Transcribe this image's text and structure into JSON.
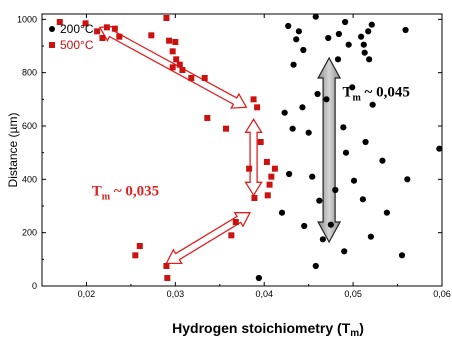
{
  "chart_data": {
    "type": "scatter",
    "xlabel": "Hydrogen stoichiometry (T",
    "xlabel_sub": "m",
    "xlabel_close": ")",
    "ylabel": "Distance (µm)",
    "xlim": [
      0.015,
      0.06
    ],
    "ylim": [
      1020,
      0
    ],
    "x_ticks": [
      0.02,
      0.03,
      0.04,
      0.05,
      0.06
    ],
    "x_tick_labels": [
      "0,02",
      "0,03",
      "0,04",
      "0,05",
      "0,06"
    ],
    "y_ticks": [
      0,
      200,
      400,
      600,
      800,
      1000
    ],
    "y_tick_labels": [
      "0",
      "200",
      "400",
      "600",
      "800",
      "1000"
    ],
    "legend_position": "top-left",
    "series": [
      {
        "name": "200°C",
        "marker": "circle",
        "color": "#000000",
        "points": [
          [
            0.0394,
            30
          ],
          [
            0.0458,
            75
          ],
          [
            0.0555,
            115
          ],
          [
            0.049,
            130
          ],
          [
            0.0466,
            175
          ],
          [
            0.052,
            185
          ],
          [
            0.0445,
            225
          ],
          [
            0.0475,
            230
          ],
          [
            0.042,
            275
          ],
          [
            0.0538,
            275
          ],
          [
            0.0462,
            320
          ],
          [
            0.0511,
            325
          ],
          [
            0.048,
            360
          ],
          [
            0.0454,
            410
          ],
          [
            0.0501,
            395
          ],
          [
            0.0561,
            400
          ],
          [
            0.0428,
            420
          ],
          [
            0.0533,
            470
          ],
          [
            0.0492,
            500
          ],
          [
            0.0597,
            515
          ],
          [
            0.0514,
            540
          ],
          [
            0.045,
            575
          ],
          [
            0.0432,
            590
          ],
          [
            0.0489,
            595
          ],
          [
            0.0423,
            650
          ],
          [
            0.0443,
            670
          ],
          [
            0.0522,
            680
          ],
          [
            0.047,
            700
          ],
          [
            0.046,
            720
          ],
          [
            0.0499,
            745
          ],
          [
            0.0433,
            830
          ],
          [
            0.0518,
            850
          ],
          [
            0.0483,
            850
          ],
          [
            0.0513,
            875
          ],
          [
            0.0444,
            885
          ],
          [
            0.0495,
            905
          ],
          [
            0.0512,
            905
          ],
          [
            0.0436,
            925
          ],
          [
            0.0472,
            930
          ],
          [
            0.0509,
            935
          ],
          [
            0.0484,
            945
          ],
          [
            0.0439,
            955
          ],
          [
            0.0517,
            955
          ],
          [
            0.0559,
            960
          ],
          [
            0.0427,
            975
          ],
          [
            0.0521,
            980
          ],
          [
            0.0491,
            990
          ],
          [
            0.0458,
            1010
          ]
        ]
      },
      {
        "name": "500°C",
        "marker": "square",
        "color": "#cc1111",
        "points": [
          [
            0.0291,
            30
          ],
          [
            0.029,
            75
          ],
          [
            0.0255,
            115
          ],
          [
            0.026,
            150
          ],
          [
            0.0363,
            190
          ],
          [
            0.0368,
            240
          ],
          [
            0.0389,
            330
          ],
          [
            0.0404,
            340
          ],
          [
            0.0406,
            380
          ],
          [
            0.0408,
            410
          ],
          [
            0.0412,
            440
          ],
          [
            0.0383,
            440
          ],
          [
            0.0403,
            465
          ],
          [
            0.0396,
            540
          ],
          [
            0.0357,
            590
          ],
          [
            0.0336,
            630
          ],
          [
            0.0392,
            670
          ],
          [
            0.0388,
            700
          ],
          [
            0.0318,
            780
          ],
          [
            0.0333,
            780
          ],
          [
            0.0308,
            810
          ],
          [
            0.0297,
            820
          ],
          [
            0.0305,
            830
          ],
          [
            0.0301,
            850
          ],
          [
            0.0297,
            880
          ],
          [
            0.03,
            915
          ],
          [
            0.0293,
            920
          ],
          [
            0.0218,
            930
          ],
          [
            0.0237,
            935
          ],
          [
            0.0273,
            940
          ],
          [
            0.0212,
            955
          ],
          [
            0.0232,
            965
          ],
          [
            0.0223,
            970
          ],
          [
            0.0199,
            985
          ],
          [
            0.017,
            990
          ],
          [
            0.029,
            1005
          ]
        ]
      }
    ],
    "arrows": [
      {
        "color": "#dd2222",
        "from": [
          0.029,
          85
        ],
        "to": [
          0.0384,
          275
        ]
      },
      {
        "color": "#dd2222",
        "from": [
          0.0388,
          340
        ],
        "to": [
          0.0388,
          625
        ]
      },
      {
        "color": "#dd2222",
        "from": [
          0.038,
          670
        ],
        "to": [
          0.0215,
          970
        ]
      },
      {
        "color": "#aaaaaa",
        "from": [
          0.0473,
          165
        ],
        "to": [
          0.0473,
          855
        ]
      }
    ],
    "annotations": [
      {
        "text": "T",
        "sub": "m",
        "rest": " ~ 0,035",
        "color": "#dd2222",
        "x": 0.0206,
        "y": 340
      },
      {
        "text": "T",
        "sub": "m",
        "rest": " ~ 0,045",
        "color": "#000000",
        "x": 0.0488,
        "y": 710
      }
    ]
  }
}
